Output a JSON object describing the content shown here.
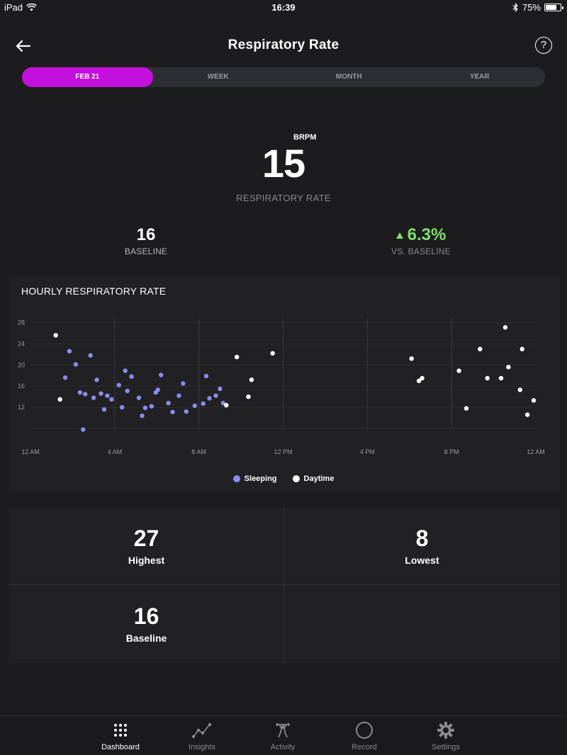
{
  "status_bar": {
    "device": "iPad",
    "time": "16:39",
    "battery": "75%",
    "battery_level": 0.75
  },
  "nav": {
    "title": "Respiratory Rate",
    "help": "?"
  },
  "tabs": [
    {
      "label": "FEB 21",
      "active": true
    },
    {
      "label": "WEEK",
      "active": false
    },
    {
      "label": "MONTH",
      "active": false
    },
    {
      "label": "YEAR",
      "active": false
    }
  ],
  "summary": {
    "value": "15",
    "unit": "BRPM",
    "label": "RESPIRATORY RATE",
    "baseline_value": "16",
    "baseline_label": "BASELINE",
    "vs_value": "6.3%",
    "vs_label": "VS. BASELINE",
    "vs_color": "#7be06b"
  },
  "chart_title": "HOURLY RESPIRATORY RATE",
  "chart_data": {
    "type": "scatter",
    "title": "HOURLY RESPIRATORY RATE",
    "x_unit": "hours since 12 AM",
    "x_ticks": [
      {
        "value": 0,
        "label": "12 AM"
      },
      {
        "value": 4,
        "label": "4 AM"
      },
      {
        "value": 8,
        "label": "8 AM"
      },
      {
        "value": 12,
        "label": "12 PM"
      },
      {
        "value": 16,
        "label": "4 PM"
      },
      {
        "value": 20,
        "label": "8 PM"
      },
      {
        "value": 24,
        "label": "12 AM"
      }
    ],
    "y_ticks": [
      12,
      16,
      20,
      24,
      28
    ],
    "xlim": [
      0,
      24
    ],
    "ylim": [
      8,
      29
    ],
    "grid": true,
    "legend_position": "bottom-center",
    "series": [
      {
        "name": "Sleeping",
        "color": "#8b8cf0",
        "points": [
          [
            1.65,
            17.6
          ],
          [
            1.85,
            22.6
          ],
          [
            2.15,
            20.1
          ],
          [
            2.35,
            14.8
          ],
          [
            2.5,
            7.8
          ],
          [
            2.6,
            14.5
          ],
          [
            2.85,
            21.8
          ],
          [
            3.0,
            13.8
          ],
          [
            3.15,
            17.2
          ],
          [
            3.35,
            14.6
          ],
          [
            3.5,
            11.6
          ],
          [
            3.65,
            14.2
          ],
          [
            3.85,
            13.5
          ],
          [
            4.2,
            16.2
          ],
          [
            4.35,
            12.0
          ],
          [
            4.5,
            18.9
          ],
          [
            4.6,
            15.1
          ],
          [
            4.8,
            17.8
          ],
          [
            5.15,
            13.8
          ],
          [
            5.3,
            10.4
          ],
          [
            5.45,
            11.9
          ],
          [
            5.75,
            12.2
          ],
          [
            5.95,
            14.8
          ],
          [
            6.05,
            15.3
          ],
          [
            6.2,
            18.1
          ],
          [
            6.55,
            12.8
          ],
          [
            6.75,
            11.1
          ],
          [
            7.05,
            14.2
          ],
          [
            7.25,
            16.5
          ],
          [
            7.4,
            11.2
          ],
          [
            7.8,
            12.3
          ],
          [
            8.2,
            12.7
          ],
          [
            8.35,
            17.9
          ],
          [
            8.5,
            13.7
          ],
          [
            8.8,
            14.2
          ],
          [
            9.0,
            15.5
          ],
          [
            9.15,
            12.8
          ]
        ]
      },
      {
        "name": "Daytime",
        "color": "#ffffff",
        "points": [
          [
            1.2,
            25.6
          ],
          [
            1.4,
            13.5
          ],
          [
            9.3,
            12.4
          ],
          [
            9.8,
            21.5
          ],
          [
            10.35,
            14.0
          ],
          [
            10.5,
            17.2
          ],
          [
            11.5,
            22.2
          ],
          [
            18.1,
            21.2
          ],
          [
            18.45,
            17.0
          ],
          [
            18.6,
            17.5
          ],
          [
            20.35,
            18.9
          ],
          [
            20.7,
            11.8
          ],
          [
            21.35,
            23.0
          ],
          [
            21.7,
            17.5
          ],
          [
            22.35,
            17.5
          ],
          [
            22.55,
            27.1
          ],
          [
            22.7,
            19.6
          ],
          [
            23.25,
            15.3
          ],
          [
            23.35,
            23.0
          ],
          [
            23.6,
            10.6
          ],
          [
            23.9,
            13.3
          ]
        ]
      }
    ]
  },
  "legend": [
    {
      "label": "Sleeping",
      "color": "#8b8cf0"
    },
    {
      "label": "Daytime",
      "color": "#ffffff"
    }
  ],
  "stats": {
    "highest": {
      "value": "27",
      "label": "Highest"
    },
    "lowest": {
      "value": "8",
      "label": "Lowest"
    },
    "baseline": {
      "value": "16",
      "label": "Baseline"
    }
  },
  "tabbar": [
    {
      "label": "Dashboard",
      "icon": "dots-grid-icon",
      "active": true
    },
    {
      "label": "Insights",
      "icon": "trend-line-icon",
      "active": false
    },
    {
      "label": "Activity",
      "icon": "weightlifter-icon",
      "active": false
    },
    {
      "label": "Record",
      "icon": "circle-icon",
      "active": false
    },
    {
      "label": "Settings",
      "icon": "gear-icon",
      "active": false
    }
  ]
}
